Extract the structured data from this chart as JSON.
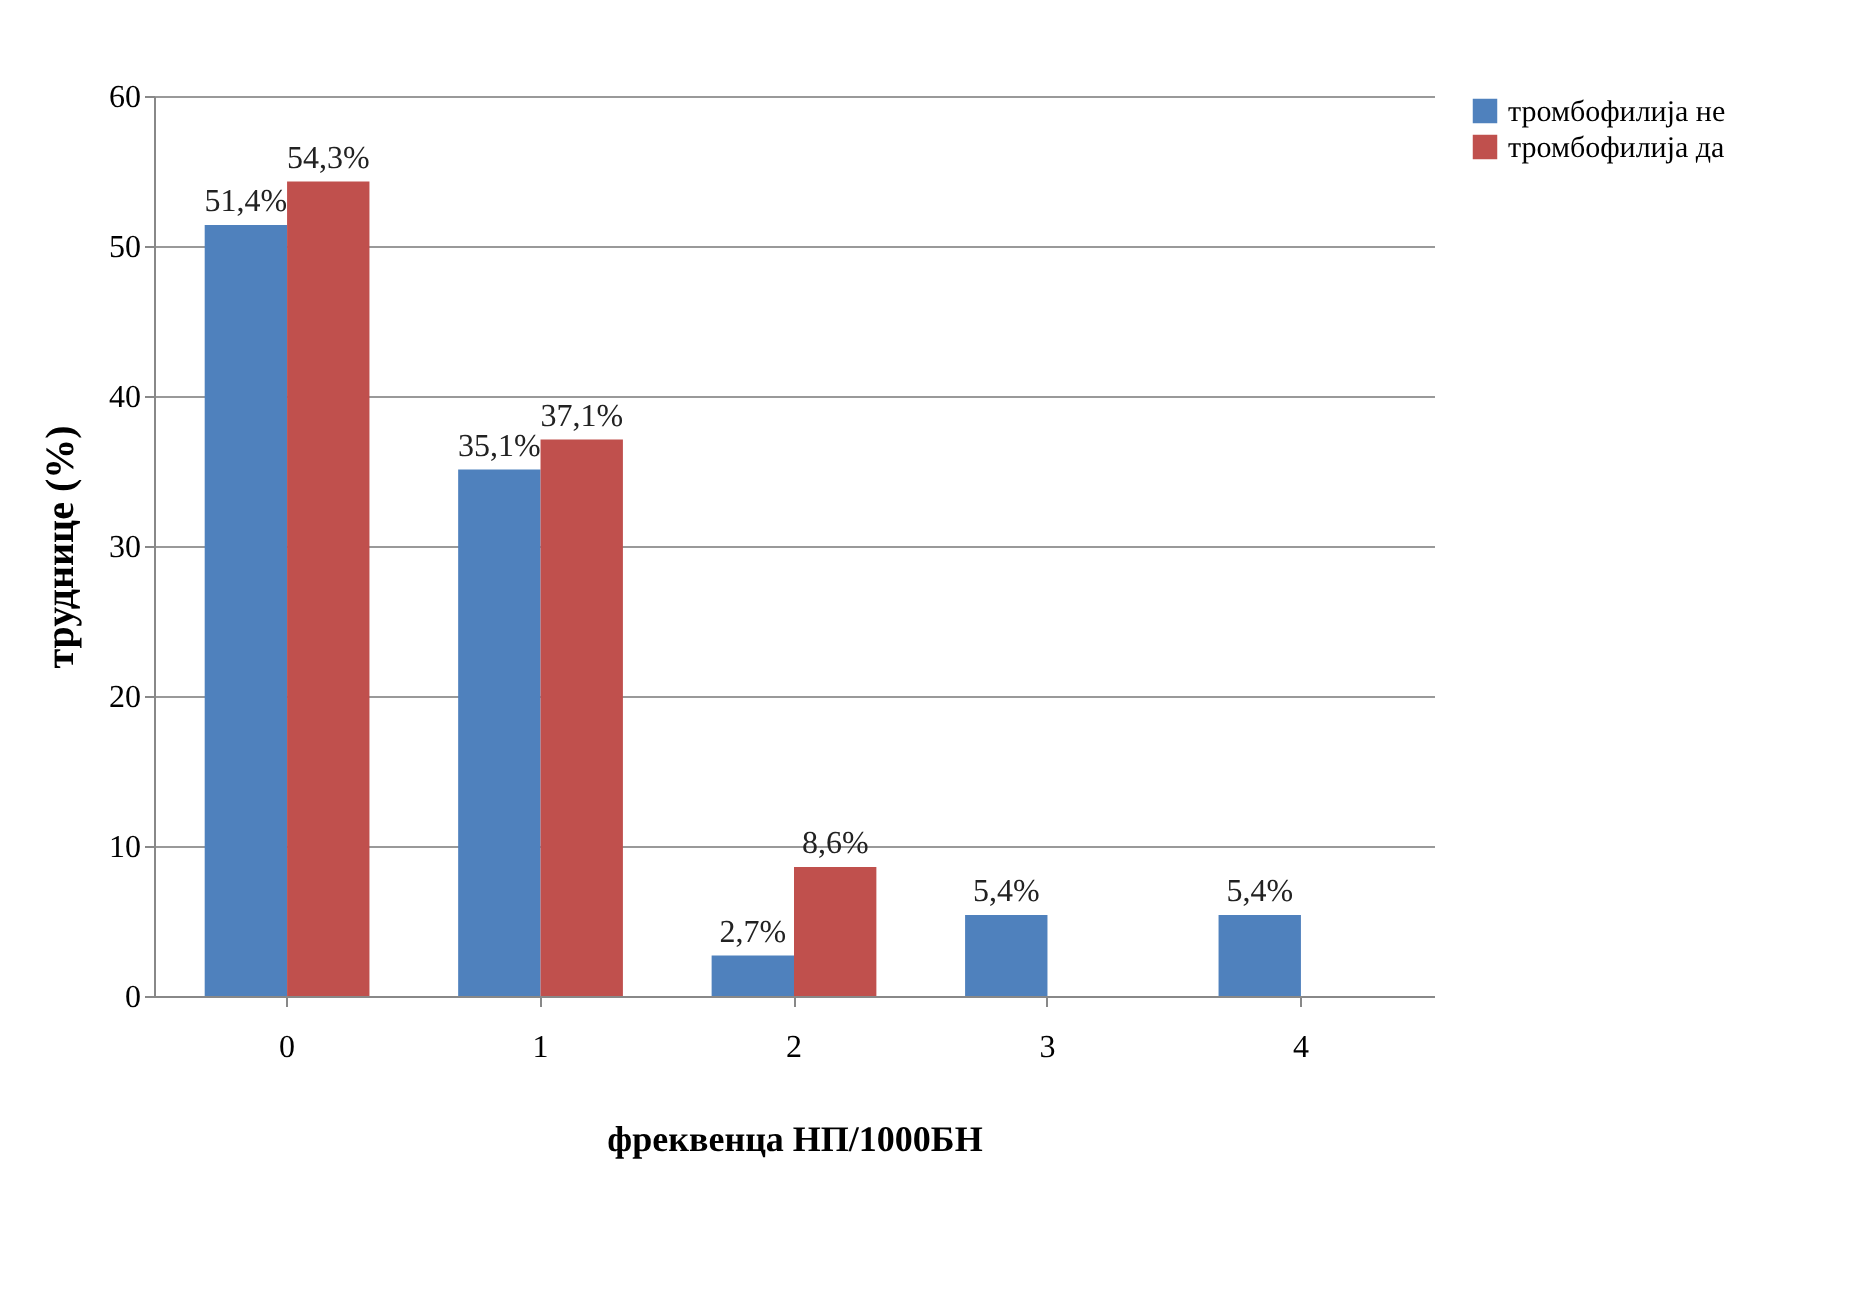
{
  "chart_data": {
    "type": "bar",
    "xlabel": "фреквенца НП/1000БН",
    "ylabel": "труднице (%)",
    "categories": [
      "0",
      "1",
      "2",
      "3",
      "4"
    ],
    "series": [
      {
        "name": "тромбофилија не",
        "color": "#4f81bd",
        "values": [
          51.4,
          35.1,
          2.7,
          5.4,
          5.4
        ],
        "value_labels": [
          "51,4%",
          "35,1%",
          "2,7%",
          "5,4%",
          "5,4%"
        ]
      },
      {
        "name": "тромбофилија да",
        "color": "#c0504d",
        "values": [
          54.3,
          37.1,
          8.6,
          null,
          null
        ],
        "value_labels": [
          "54,3%",
          "37,1%",
          "8,6%",
          null,
          null
        ]
      }
    ],
    "ylim": [
      0,
      60
    ],
    "yticks": [
      0,
      10,
      20,
      30,
      40,
      50,
      60
    ],
    "grid": "y",
    "legend": "right"
  }
}
